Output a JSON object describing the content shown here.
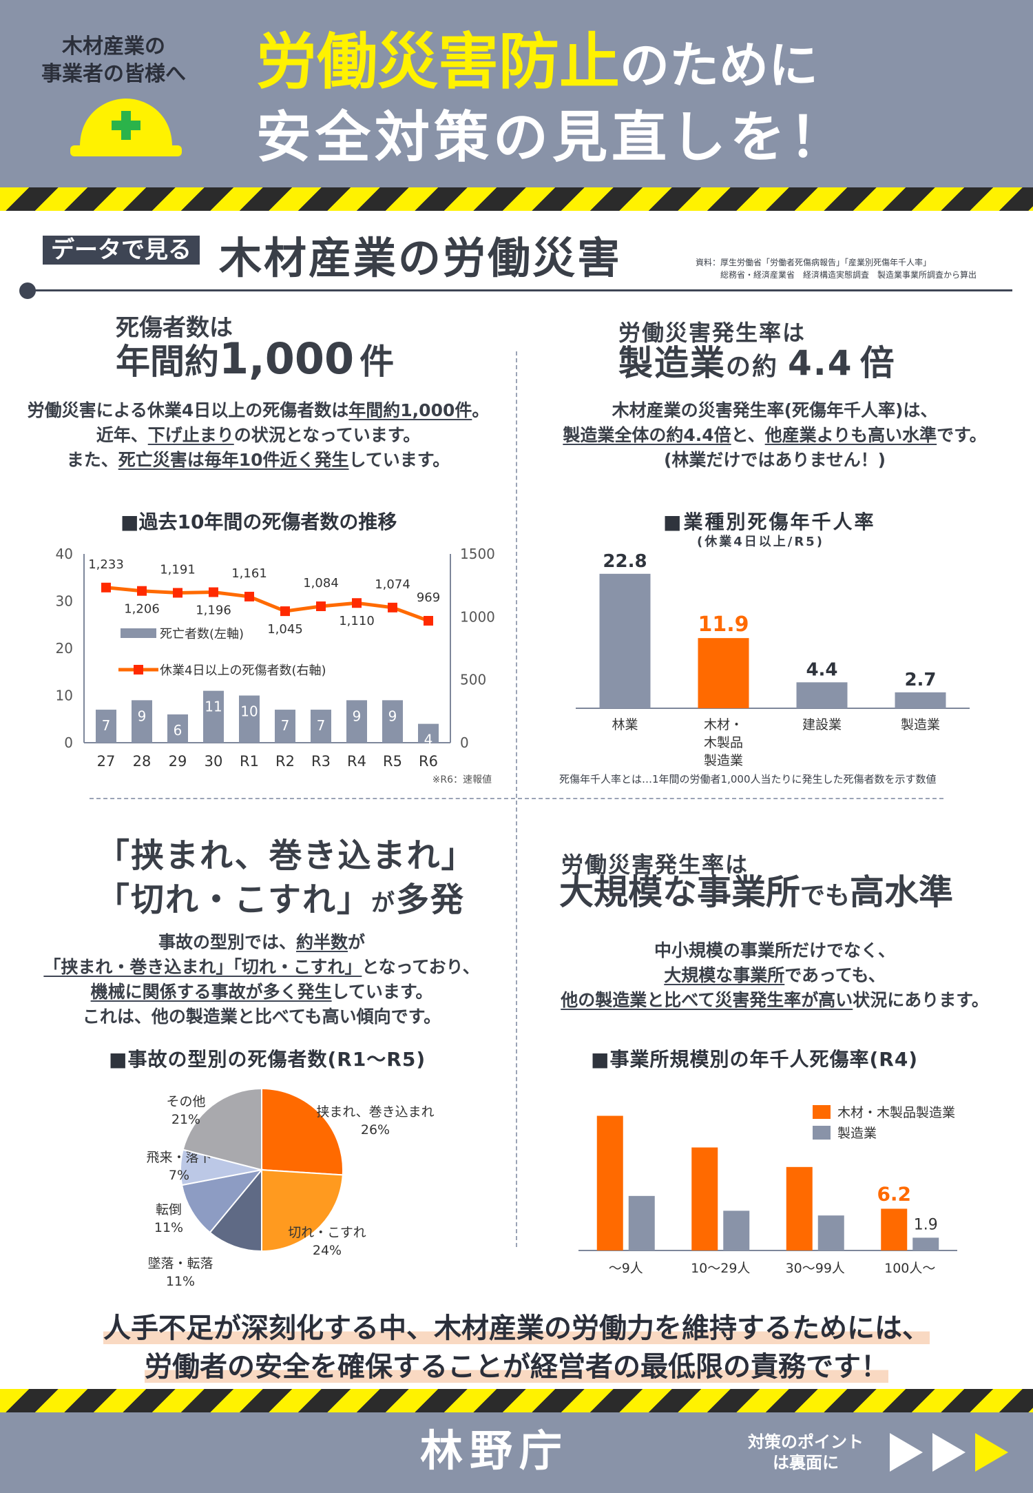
{
  "header": {
    "to_line1": "木材産業の",
    "to_line2": "事業者の皆様へ",
    "title_yellow": "労働災害防止",
    "title_white": "のために",
    "title_line2": "安全対策の見直しを！"
  },
  "section": {
    "tag": "データで見る",
    "title": "木材産業の労働災害",
    "source_line1": "資料：厚生労働省「労働者死傷病報告」「産業別死傷年千人率」",
    "source_line2": "総務省・経済産業省　経済構造実態調査　製造業事業所調査から算出"
  },
  "q1": {
    "heading1": "死傷者数は",
    "heading2_a": "年間約",
    "heading2_num": "1,000",
    "heading2_b": "件",
    "body": [
      [
        "労働災害による休業4日以上の死傷者数は",
        "年間約1,000件",
        "。"
      ],
      [
        "近年、",
        "下げ止まり",
        "の状況となっています。"
      ],
      [
        "また、",
        "死亡災害は毎年10件近く発生",
        "しています。"
      ]
    ],
    "chart_title": "■過去10年間の死傷者数の推移"
  },
  "q2": {
    "heading1": "労働災害発生率は",
    "heading2_a": "製造業",
    "heading2_b": "の約",
    "heading2_num": "4.4",
    "heading2_c": "倍",
    "body_l1": "木材産業の災害発生率(死傷年千人率)は、",
    "body_l2_u1": "製造業全体の約4.4倍",
    "body_l2_t1": "と、",
    "body_l2_u2": "他産業よりも高い水準",
    "body_l2_t2": "です。",
    "body_l3": "(林業だけではありません！)",
    "chart_title": "■業種別死傷年千人率",
    "chart_subtitle": "(休業4日以上/R5)",
    "note": "死傷年千人率とは…1年間の労働者1,000人当たりに発生した死傷者数を示す数値"
  },
  "q3": {
    "heading1": "「挟まれ、巻き込まれ」",
    "heading2_a": "「切れ・こすれ」",
    "heading2_b": "が",
    "heading2_c": "多発",
    "body_l1_t": "事故の型別では、",
    "body_l1_u": "約半数",
    "body_l1_t2": "が",
    "body_l2_u": "「挟まれ・巻き込まれ」「切れ・こすれ」",
    "body_l2_t": "となっており、",
    "body_l3_u": "機械に関係する事故が多く発生",
    "body_l3_t": "しています。",
    "body_l4": "これは、他の製造業と比べても高い傾向です。",
    "chart_title": "■事故の型別の死傷者数(R1～R5)"
  },
  "q4": {
    "heading1": "労働災害発生率は",
    "heading2_a": "大規模な事業所",
    "heading2_b": "でも",
    "heading2_c": "高水準",
    "body_l1": "中小規模の事業所だけでなく、",
    "body_l2_u": "大規模な事業所",
    "body_l2_t": "であっても、",
    "body_l3_u": "他の製造業と比べて災害発生率が高い",
    "body_l3_t": "状況にあります。",
    "chart_title": "■事業所規模別の年千人死傷率(R4)"
  },
  "message": {
    "line1": "人手不足が深刻化する中、木材産業の労働力を維持するためには、",
    "line2": "労働者の安全を確保することが経営者の最低限の責務です！"
  },
  "footer": {
    "agency": "林野庁",
    "note_line1": "対策のポイント",
    "note_line2": "は裏面に"
  },
  "colors": {
    "slate": "#8993a8",
    "orange": "#ff6a00",
    "orange_light": "#ff9a1f",
    "yellow": "#fff200",
    "dark": "#3e4554"
  },
  "icons": {
    "helmet": "safety-helmet-icon",
    "arrows": "play-arrows-icon"
  },
  "chart_data": [
    {
      "type": "bar+line",
      "categories": [
        "27",
        "28",
        "29",
        "30",
        "R1",
        "R2",
        "R3",
        "R4",
        "R5",
        "R6"
      ],
      "series": [
        {
          "name": "死亡者数(左軸)",
          "type": "bar",
          "axis": "left",
          "values": [
            7,
            9,
            6,
            11,
            10,
            7,
            7,
            9,
            9,
            4
          ]
        },
        {
          "name": "休業4日以上の死傷者数(右軸)",
          "type": "line",
          "axis": "right",
          "values": [
            1233,
            1206,
            1191,
            1196,
            1161,
            1045,
            1084,
            1110,
            1074,
            969
          ]
        }
      ],
      "left_ticks": [
        "0",
        "10",
        "20",
        "30",
        "40"
      ],
      "right_ticks": [
        "0",
        "500",
        "1000",
        "1500"
      ],
      "ylim_left": [
        0,
        40
      ],
      "ylim_right": [
        0,
        1500
      ],
      "footnote": "※R6：速報値"
    },
    {
      "type": "bar",
      "categories": [
        "林業",
        "木材・木製品製造業",
        "建設業",
        "製造業"
      ],
      "category_lines": [
        [
          "林業"
        ],
        [
          "木材・",
          "木製品",
          "製造業"
        ],
        [
          "建設業"
        ],
        [
          "製造業"
        ]
      ],
      "values": [
        22.8,
        11.9,
        4.4,
        2.7
      ],
      "value_labels": [
        "22.8",
        "11.9",
        "4.4",
        "2.7"
      ],
      "highlight_index": 1,
      "ylim": [
        0,
        25
      ]
    },
    {
      "type": "pie",
      "slices": [
        {
          "label": "挟まれ、巻き込まれ",
          "pct": 26,
          "pct_label": "26%",
          "color": "#ff6a00"
        },
        {
          "label": "切れ・こすれ",
          "pct": 24,
          "pct_label": "24%",
          "color": "#ff9a1f"
        },
        {
          "label": "墜落・転落",
          "pct": 11,
          "pct_label": "11%",
          "color": "#5f6a85"
        },
        {
          "label": "転倒",
          "pct": 11,
          "pct_label": "11%",
          "color": "#8d9cc3"
        },
        {
          "label": "飛来・落下",
          "pct": 7,
          "pct_label": "7%",
          "color": "#bcc8e6"
        },
        {
          "label": "その他",
          "pct": 21,
          "pct_label": "21%",
          "color": "#a9a9ad"
        }
      ]
    },
    {
      "type": "bar",
      "categories": [
        "～9人",
        "10～29人",
        "30～99人",
        "100人～"
      ],
      "series": [
        {
          "name": "木材・木製品製造業",
          "values": [
            20.0,
            15.3,
            12.4,
            6.2
          ]
        },
        {
          "name": "製造業",
          "values": [
            8.1,
            5.9,
            5.2,
            1.9
          ]
        }
      ],
      "value_labels": {
        "木材・木製品製造業": {
          "3": "6.2"
        },
        "製造業": {
          "3": "1.9"
        }
      },
      "ylim": [
        0,
        22
      ],
      "legend": "top-right"
    }
  ]
}
